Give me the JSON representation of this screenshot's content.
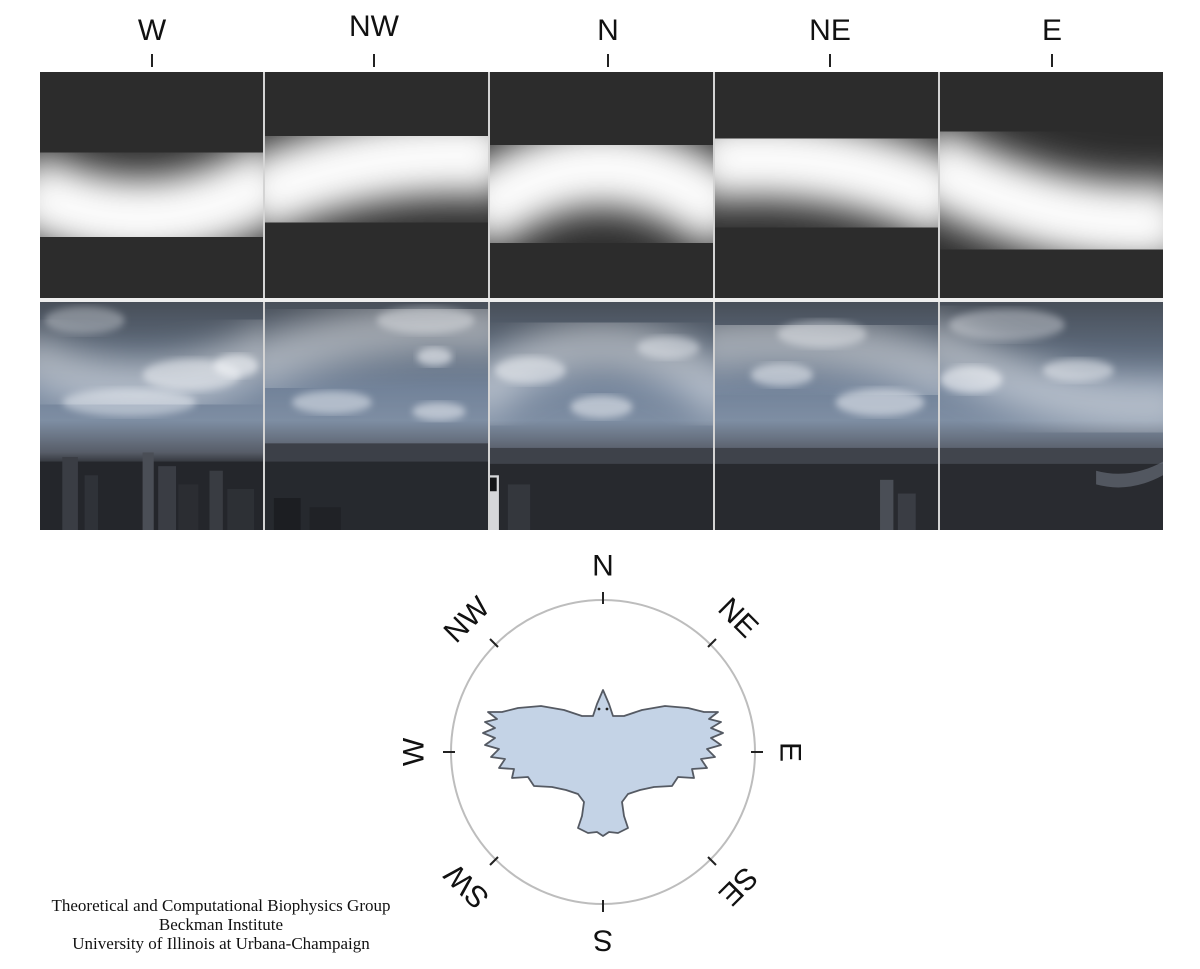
{
  "top_directions": [
    "W",
    "NW",
    "N",
    "NE",
    "E"
  ],
  "compass_labels": {
    "N": "N",
    "NE": "NE",
    "E": "E",
    "SE": "SE",
    "S": "S",
    "SW": "SW",
    "W": "W",
    "NW": "NW"
  },
  "credits": {
    "line1": "Theoretical and Computational Biophysics Group",
    "line2": "Beckman Institute",
    "line3": "University of Illinois at Urbana-Champaign"
  },
  "colors": {
    "bird_fill": "#c4d3e6",
    "bird_stroke": "#555a63",
    "compass_ring": "#bdbdbd",
    "pattern_dark": "#2c2c2c",
    "pattern_bright": "#ffffff"
  }
}
